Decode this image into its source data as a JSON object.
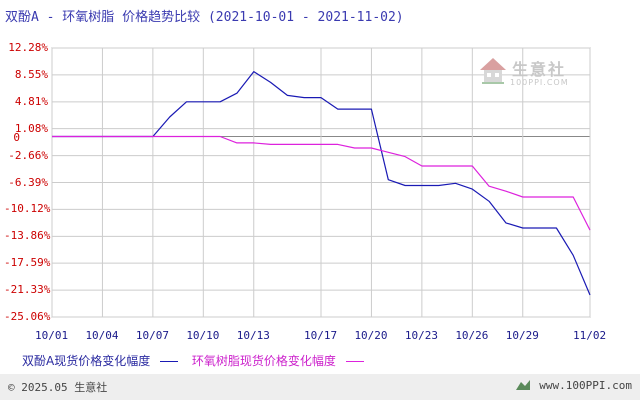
{
  "chart_data": {
    "type": "line",
    "title": "双酚A - 环氧树脂 价格趋势比较",
    "date_range": "(2021-10-01 - 2021-11-02)",
    "x_ticks": [
      "10/01",
      "10/04",
      "10/07",
      "10/10",
      "10/13",
      "10/17",
      "10/20",
      "10/23",
      "10/26",
      "10/29",
      "11/02"
    ],
    "y_ticks": [
      "12.28%",
      "8.55%",
      "4.81%",
      "1.08%",
      "-2.66%",
      "-6.39%",
      "-10.12%",
      "-13.86%",
      "-17.59%",
      "-21.33%",
      "-25.06%"
    ],
    "zero_label": "0",
    "ylim": [
      -25.06,
      12.28
    ],
    "grid": true,
    "legend_position": "bottom",
    "series": [
      {
        "name": "双酚A现货价格变化幅度",
        "color": "#1a1ab4",
        "points": [
          [
            "10/01",
            0
          ],
          [
            "10/02",
            0
          ],
          [
            "10/03",
            0
          ],
          [
            "10/04",
            0
          ],
          [
            "10/05",
            0
          ],
          [
            "10/06",
            0
          ],
          [
            "10/07",
            0
          ],
          [
            "10/08",
            2.7
          ],
          [
            "10/09",
            4.81
          ],
          [
            "10/10",
            4.81
          ],
          [
            "10/11",
            4.81
          ],
          [
            "10/12",
            6.0
          ],
          [
            "10/13",
            9.0
          ],
          [
            "10/14",
            7.5
          ],
          [
            "10/15",
            5.7
          ],
          [
            "10/16",
            5.4
          ],
          [
            "10/17",
            5.4
          ],
          [
            "10/18",
            3.8
          ],
          [
            "10/19",
            3.8
          ],
          [
            "10/20",
            3.8
          ],
          [
            "10/21",
            -6.0
          ],
          [
            "10/22",
            -6.8
          ],
          [
            "10/23",
            -6.8
          ],
          [
            "10/24",
            -6.8
          ],
          [
            "10/25",
            -6.5
          ],
          [
            "10/26",
            -7.3
          ],
          [
            "10/27",
            -9.0
          ],
          [
            "10/28",
            -12.0
          ],
          [
            "10/29",
            -12.7
          ],
          [
            "10/30",
            -12.7
          ],
          [
            "10/31",
            -12.7
          ],
          [
            "11/01",
            -16.5
          ],
          [
            "11/02",
            -22.0
          ]
        ]
      },
      {
        "name": "环氧树脂现货价格变化幅度",
        "color": "#dd22dd",
        "points": [
          [
            "10/01",
            0
          ],
          [
            "10/02",
            0
          ],
          [
            "10/03",
            0
          ],
          [
            "10/04",
            0
          ],
          [
            "10/05",
            0
          ],
          [
            "10/06",
            0
          ],
          [
            "10/07",
            0
          ],
          [
            "10/08",
            0
          ],
          [
            "10/09",
            0
          ],
          [
            "10/10",
            0
          ],
          [
            "10/11",
            0
          ],
          [
            "10/12",
            -0.9
          ],
          [
            "10/13",
            -0.9
          ],
          [
            "10/14",
            -1.1
          ],
          [
            "10/15",
            -1.1
          ],
          [
            "10/16",
            -1.1
          ],
          [
            "10/17",
            -1.1
          ],
          [
            "10/18",
            -1.1
          ],
          [
            "10/19",
            -1.6
          ],
          [
            "10/20",
            -1.6
          ],
          [
            "10/21",
            -2.2
          ],
          [
            "10/22",
            -2.8
          ],
          [
            "10/23",
            -4.1
          ],
          [
            "10/24",
            -4.1
          ],
          [
            "10/25",
            -4.1
          ],
          [
            "10/26",
            -4.1
          ],
          [
            "10/27",
            -6.9
          ],
          [
            "10/28",
            -7.6
          ],
          [
            "10/29",
            -8.4
          ],
          [
            "10/30",
            -8.4
          ],
          [
            "10/31",
            -8.4
          ],
          [
            "11/01",
            -8.4
          ],
          [
            "11/02",
            -13.0
          ]
        ]
      }
    ]
  },
  "legend": {
    "series1_label": "双酚A现货价格变化幅度",
    "series2_label": "环氧树脂现货价格变化幅度"
  },
  "watermark": {
    "text": "生意社",
    "url": "100PPI.COM"
  },
  "footer": {
    "copyright": "© 2025.05 生意社",
    "site": "www.100PPI.com"
  },
  "colors": {
    "series1": "#1a1ab4",
    "series2": "#dd22dd",
    "grid": "#cccccc",
    "ytick": "#cc0000",
    "footer_bg": "#eeeeee"
  }
}
